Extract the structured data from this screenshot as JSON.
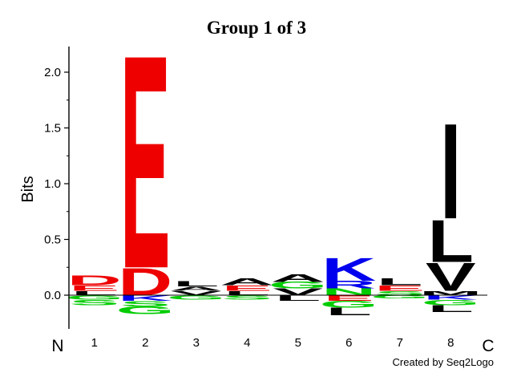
{
  "chart_data": {
    "type": "sequence-logo",
    "title": "Group 1 of 3",
    "ylabel": "Bits",
    "ylim": [
      -0.25,
      2.25
    ],
    "yticks": [
      "2.0",
      "1.5",
      "1.0",
      "0.5",
      "0.0"
    ],
    "ytick_values": [
      2.0,
      1.5,
      1.0,
      0.5,
      0.0
    ],
    "positions": [
      "1",
      "2",
      "3",
      "4",
      "5",
      "6",
      "7",
      "8"
    ],
    "n_terminal_label": "N",
    "c_terminal_label": "C",
    "colors": {
      "acidic": "#ee0000",
      "basic": "#0000ee",
      "hydrophobic": "#000000",
      "polar": "#00cc00",
      "other": "#888888"
    },
    "columns": [
      {
        "position": "1",
        "positive": [
          {
            "letter": "L",
            "value": 0.04,
            "color": "#000000"
          },
          {
            "letter": "E",
            "value": 0.05,
            "color": "#ee0000"
          },
          {
            "letter": "D",
            "value": 0.09,
            "color": "#ee0000"
          }
        ],
        "negative": [
          {
            "letter": "G",
            "value": 0.04,
            "color": "#00cc00"
          },
          {
            "letter": "S",
            "value": 0.05,
            "color": "#00cc00"
          }
        ]
      },
      {
        "position": "2",
        "positive": [
          {
            "letter": "D",
            "value": 0.25,
            "color": "#ee0000"
          },
          {
            "letter": "E",
            "value": 1.97,
            "color": "#ee0000"
          }
        ],
        "negative": [
          {
            "letter": "K",
            "value": 0.05,
            "color": "#0000ee"
          },
          {
            "letter": "S",
            "value": 0.05,
            "color": "#00cc00"
          },
          {
            "letter": "G",
            "value": 0.07,
            "color": "#00cc00"
          }
        ]
      },
      {
        "position": "3",
        "positive": [
          {
            "letter": "V",
            "value": 0.04,
            "color": "#000000"
          },
          {
            "letter": "A",
            "value": 0.04,
            "color": "#000000"
          },
          {
            "letter": "L",
            "value": 0.05,
            "color": "#000000"
          }
        ],
        "negative": [
          {
            "letter": "G",
            "value": 0.04,
            "color": "#00cc00"
          }
        ]
      },
      {
        "position": "4",
        "positive": [
          {
            "letter": "L",
            "value": 0.04,
            "color": "#000000"
          },
          {
            "letter": "E",
            "value": 0.05,
            "color": "#ee0000"
          },
          {
            "letter": "A",
            "value": 0.06,
            "color": "#000000"
          }
        ],
        "negative": [
          {
            "letter": "S",
            "value": 0.04,
            "color": "#00cc00"
          }
        ]
      },
      {
        "position": "5",
        "positive": [
          {
            "letter": "V",
            "value": 0.06,
            "color": "#000000"
          },
          {
            "letter": "G",
            "value": 0.06,
            "color": "#00cc00"
          },
          {
            "letter": "A",
            "value": 0.07,
            "color": "#000000"
          }
        ],
        "negative": [
          {
            "letter": "L",
            "value": 0.05,
            "color": "#000000"
          }
        ]
      },
      {
        "position": "6",
        "positive": [
          {
            "letter": "N",
            "value": 0.06,
            "color": "#00cc00"
          },
          {
            "letter": "R",
            "value": 0.07,
            "color": "#0000ee"
          },
          {
            "letter": "K",
            "value": 0.21,
            "color": "#0000ee"
          }
        ],
        "negative": [
          {
            "letter": "E",
            "value": 0.05,
            "color": "#ee0000"
          },
          {
            "letter": "G",
            "value": 0.06,
            "color": "#00cc00"
          },
          {
            "letter": "L",
            "value": 0.07,
            "color": "#000000"
          }
        ]
      },
      {
        "position": "7",
        "positive": [
          {
            "letter": "S",
            "value": 0.04,
            "color": "#00cc00"
          },
          {
            "letter": "E",
            "value": 0.05,
            "color": "#ee0000"
          },
          {
            "letter": "L",
            "value": 0.06,
            "color": "#000000"
          }
        ],
        "negative": [
          {
            "letter": "G",
            "value": 0.03,
            "color": "#00cc00"
          }
        ]
      },
      {
        "position": "8",
        "positive": [
          {
            "letter": "M",
            "value": 0.04,
            "color": "#000000"
          },
          {
            "letter": "V",
            "value": 0.26,
            "color": "#000000"
          },
          {
            "letter": "L",
            "value": 0.39,
            "color": "#000000"
          },
          {
            "letter": "I",
            "value": 0.88,
            "color": "#000000"
          }
        ],
        "negative": [
          {
            "letter": "K",
            "value": 0.04,
            "color": "#0000ee"
          },
          {
            "letter": "G",
            "value": 0.05,
            "color": "#00cc00"
          },
          {
            "letter": "L",
            "value": 0.06,
            "color": "#000000"
          }
        ]
      }
    ]
  },
  "credit": "Created by Seq2Logo"
}
